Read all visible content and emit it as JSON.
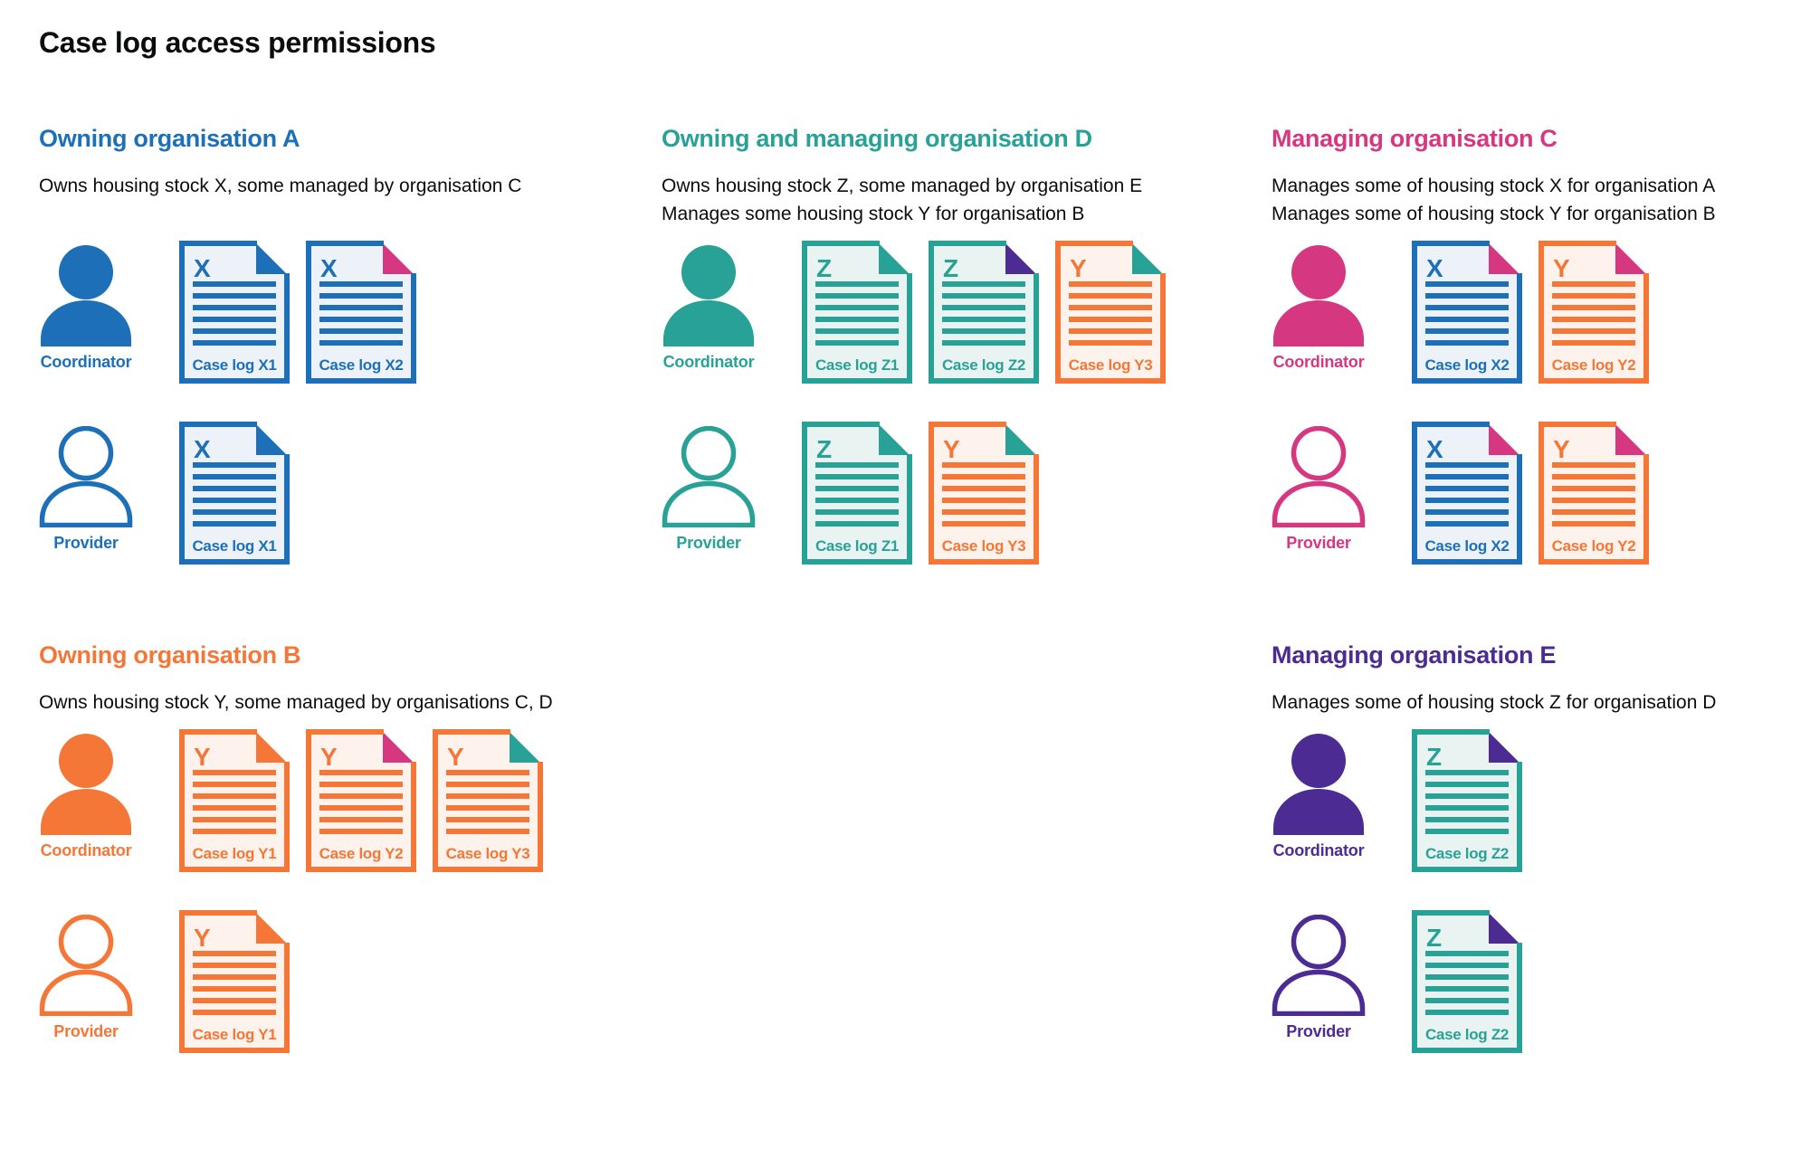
{
  "page": {
    "title": "Case log access permissions"
  },
  "palette": {
    "blue": "#1d70b8",
    "teal": "#28a197",
    "orange": "#f47738",
    "pink": "#d53880",
    "purple": "#4c2c92",
    "blue_tint": "#edf2f9",
    "teal_tint": "#e9f4f2",
    "orange_tint": "#fdf3ec",
    "text": "#0b0c0c",
    "background": "#ffffff"
  },
  "sections": [
    {
      "org": "A",
      "title": "Owning organisation A",
      "color": "blue",
      "description": [
        "Owns housing stock X, some managed by organisation C"
      ],
      "rows": [
        {
          "role": "Coordinator",
          "person": "filled",
          "docs": [
            {
              "letter": "X",
              "label": "Case log X1",
              "color": "blue",
              "fold": "blue"
            },
            {
              "letter": "X",
              "label": "Case log X2",
              "color": "blue",
              "fold": "pink"
            }
          ]
        },
        {
          "role": "Provider",
          "person": "outline",
          "docs": [
            {
              "letter": "X",
              "label": "Case log X1",
              "color": "blue",
              "fold": "blue"
            }
          ]
        }
      ]
    },
    {
      "org": "D",
      "title": "Owning and managing organisation D",
      "color": "teal",
      "description": [
        "Owns housing stock Z, some managed by organisation E",
        "Manages some housing stock Y for organisation B"
      ],
      "rows": [
        {
          "role": "Coordinator",
          "person": "filled",
          "docs": [
            {
              "letter": "Z",
              "label": "Case log Z1",
              "color": "teal",
              "fold": "teal"
            },
            {
              "letter": "Z",
              "label": "Case log Z2",
              "color": "teal",
              "fold": "purple"
            },
            {
              "letter": "Y",
              "label": "Case log Y3",
              "color": "orange",
              "fold": "teal"
            }
          ]
        },
        {
          "role": "Provider",
          "person": "outline",
          "docs": [
            {
              "letter": "Z",
              "label": "Case log Z1",
              "color": "teal",
              "fold": "teal"
            },
            {
              "letter": "Y",
              "label": "Case log Y3",
              "color": "orange",
              "fold": "teal"
            }
          ]
        }
      ]
    },
    {
      "org": "C",
      "title": "Managing organisation C",
      "color": "pink",
      "description": [
        "Manages some of housing stock X for organisation A",
        "Manages some of housing stock Y for organisation B"
      ],
      "rows": [
        {
          "role": "Coordinator",
          "person": "filled",
          "docs": [
            {
              "letter": "X",
              "label": "Case log X2",
              "color": "blue",
              "fold": "pink"
            },
            {
              "letter": "Y",
              "label": "Case log Y2",
              "color": "orange",
              "fold": "pink"
            }
          ]
        },
        {
          "role": "Provider",
          "person": "outline",
          "docs": [
            {
              "letter": "X",
              "label": "Case log X2",
              "color": "blue",
              "fold": "pink"
            },
            {
              "letter": "Y",
              "label": "Case log Y2",
              "color": "orange",
              "fold": "pink"
            }
          ]
        }
      ]
    },
    {
      "org": "B",
      "title": "Owning organisation B",
      "color": "orange",
      "description": [
        "Owns housing stock Y, some managed by organisations C, D"
      ],
      "rows": [
        {
          "role": "Coordinator",
          "person": "filled",
          "docs": [
            {
              "letter": "Y",
              "label": "Case log Y1",
              "color": "orange",
              "fold": "orange"
            },
            {
              "letter": "Y",
              "label": "Case log Y2",
              "color": "orange",
              "fold": "pink"
            },
            {
              "letter": "Y",
              "label": "Case log Y3",
              "color": "orange",
              "fold": "teal"
            }
          ]
        },
        {
          "role": "Provider",
          "person": "outline",
          "docs": [
            {
              "letter": "Y",
              "label": "Case log Y1",
              "color": "orange",
              "fold": "orange"
            }
          ]
        }
      ]
    },
    {
      "org": "E",
      "title": "Managing organisation E",
      "color": "purple",
      "description": [
        "Manages some of housing stock Z for organisation D"
      ],
      "rows": [
        {
          "role": "Coordinator",
          "person": "filled",
          "docs": [
            {
              "letter": "Z",
              "label": "Case log Z2",
              "color": "teal",
              "fold": "purple"
            }
          ]
        },
        {
          "role": "Provider",
          "person": "outline",
          "docs": [
            {
              "letter": "Z",
              "label": "Case log Z2",
              "color": "teal",
              "fold": "purple"
            }
          ]
        }
      ]
    }
  ]
}
